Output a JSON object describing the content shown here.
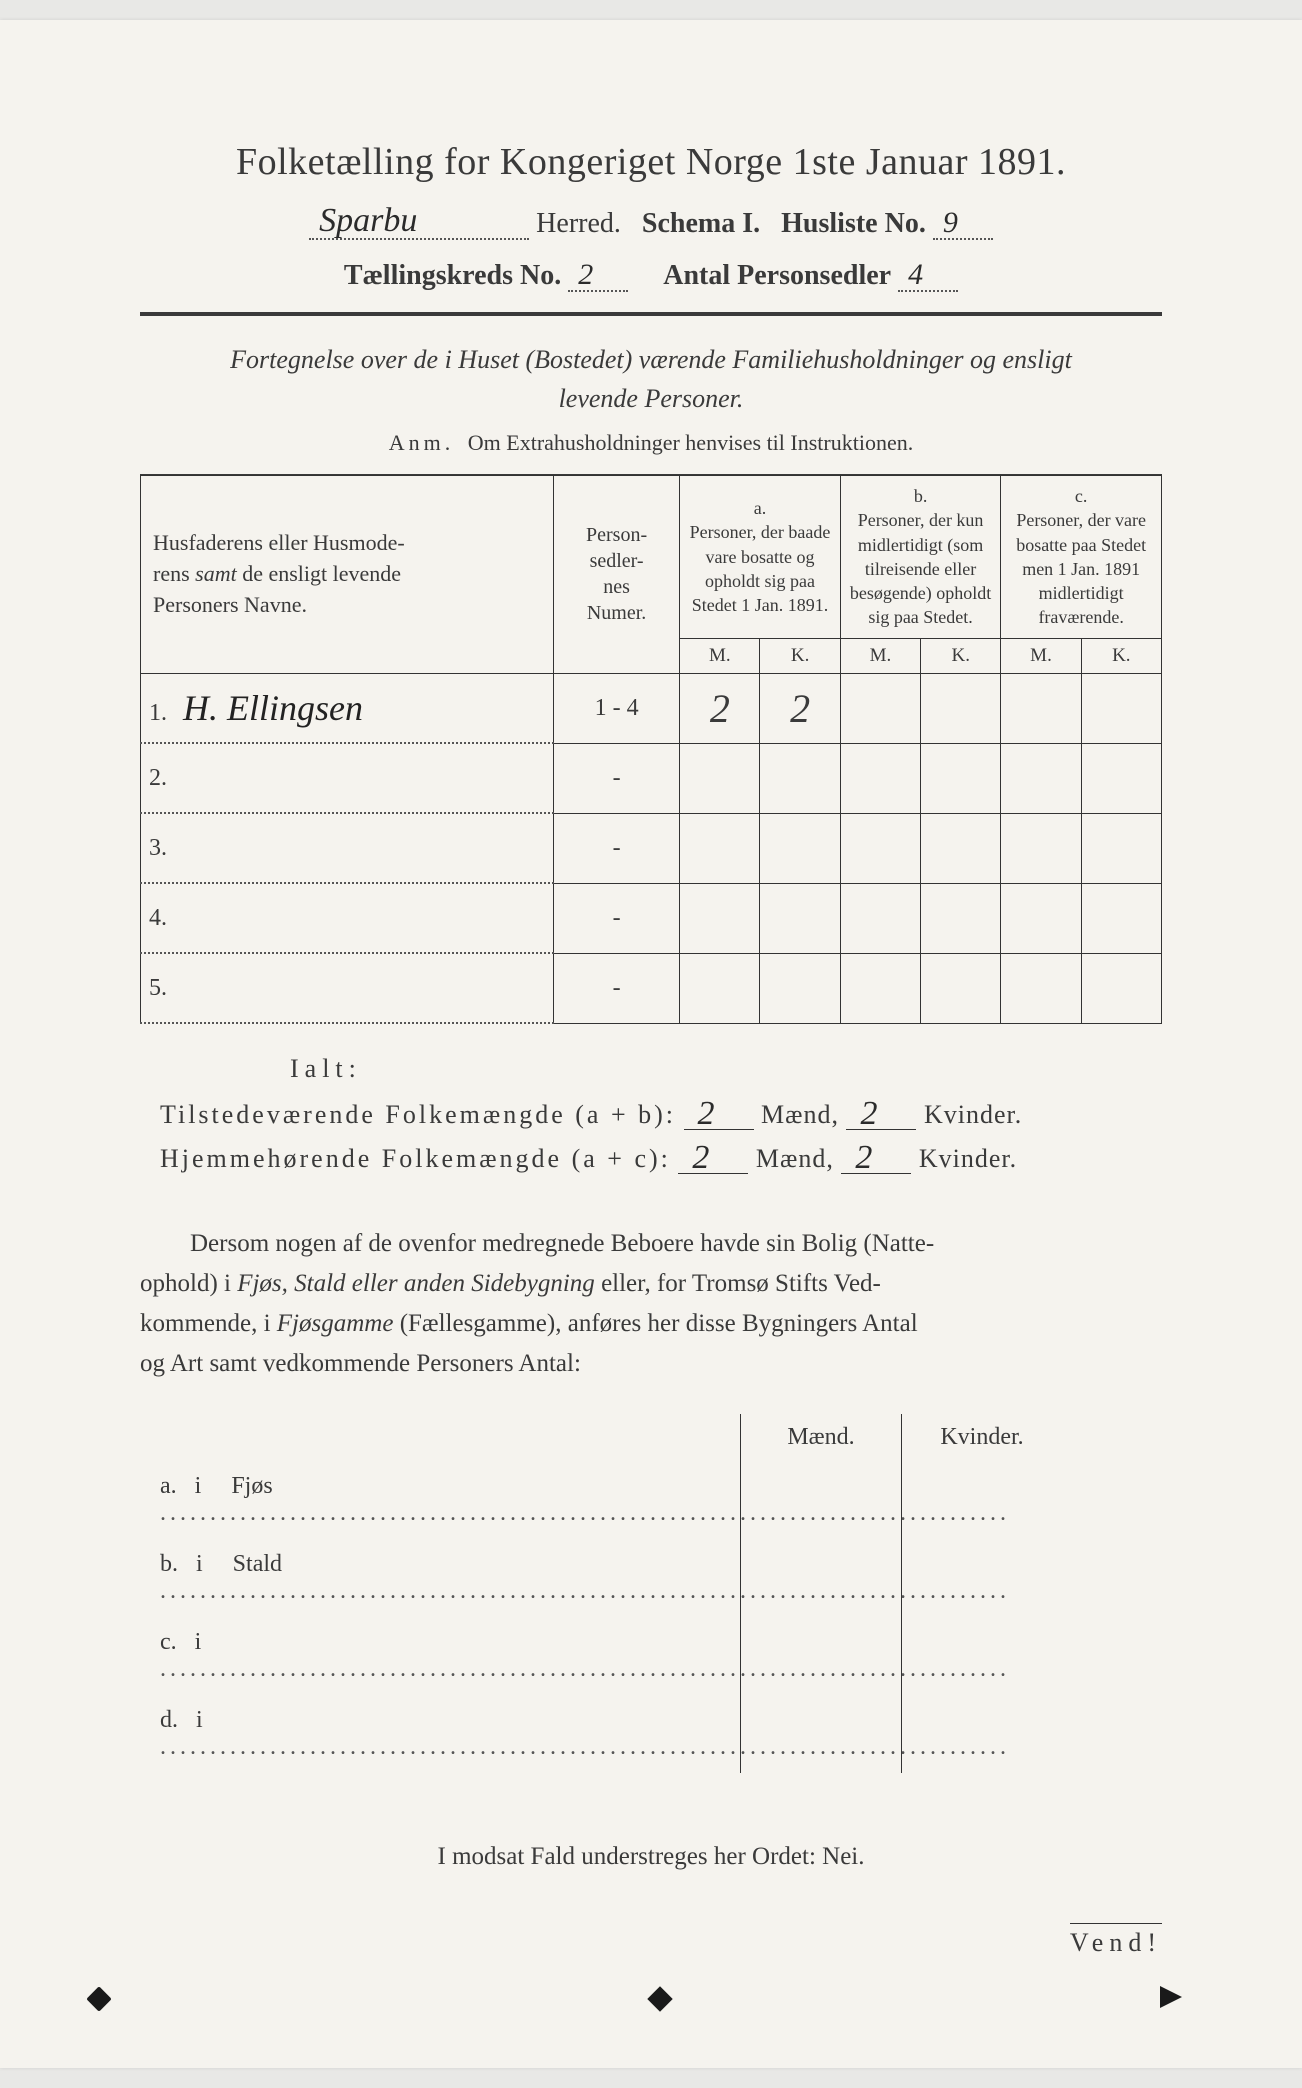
{
  "header": {
    "title": "Folketælling for Kongeriget Norge 1ste Januar 1891.",
    "herred_value": "Sparbu",
    "herred_label": "Herred.",
    "schema_label": "Schema I.",
    "husliste_label": "Husliste No.",
    "husliste_value": "9",
    "kreds_label": "Tællingskreds No.",
    "kreds_value": "2",
    "antal_label": "Antal Personsedler",
    "antal_value": "4"
  },
  "intro": {
    "fortegnelse": "Fortegnelse over de i Huset (Bostedet) værende Familiehusholdninger og ensligt levende Personer.",
    "anm_label": "Anm.",
    "anm_text": "Om Extrahusholdninger henvises til Instruktionen."
  },
  "table": {
    "col_name": "Husfaderens eller Husmoderens samt de ensligt levende Personers Navne.",
    "col_num": "Person-\nsedler-\nnes\nNumer.",
    "col_a_key": "a.",
    "col_a": "Personer, der baade vare bosatte og opholdt sig paa Stedet 1 Jan. 1891.",
    "col_b_key": "b.",
    "col_b": "Personer, der kun midlertidigt (som tilreisende eller besøgende) opholdt sig paa Stedet.",
    "col_c_key": "c.",
    "col_c": "Personer, der vare bosatte paa Stedet men 1 Jan. 1891 midlertidigt fraværende.",
    "M": "M.",
    "K": "K.",
    "rows": [
      {
        "n": "1.",
        "name": "H. Ellingsen",
        "num": "1 - 4",
        "aM": "2",
        "aK": "2",
        "bM": "",
        "bK": "",
        "cM": "",
        "cK": ""
      },
      {
        "n": "2.",
        "name": "",
        "num": "-",
        "aM": "",
        "aK": "",
        "bM": "",
        "bK": "",
        "cM": "",
        "cK": ""
      },
      {
        "n": "3.",
        "name": "",
        "num": "-",
        "aM": "",
        "aK": "",
        "bM": "",
        "bK": "",
        "cM": "",
        "cK": ""
      },
      {
        "n": "4.",
        "name": "",
        "num": "-",
        "aM": "",
        "aK": "",
        "bM": "",
        "bK": "",
        "cM": "",
        "cK": ""
      },
      {
        "n": "5.",
        "name": "",
        "num": "-",
        "aM": "",
        "aK": "",
        "bM": "",
        "bK": "",
        "cM": "",
        "cK": ""
      }
    ]
  },
  "ialt": "Ialt:",
  "totals": {
    "line1_label": "Tilstedeværende Folkemængde (a + b):",
    "line2_label": "Hjemmehørende Folkemængde (a + c):",
    "maend": "Mænd,",
    "kvinder": "Kvinder.",
    "l1_m": "2",
    "l1_k": "2",
    "l2_m": "2",
    "l2_k": "2"
  },
  "paragraph": "Dersom nogen af de ovenfor medregnede Beboere havde sin Bolig (Natteophold) i Fjøs, Stald eller anden Sidebygning eller, for Tromsø Stifts Vedkommende, i Fjøsgamme (Fællesgamme), anføres her disse Bygningers Antal og Art samt vedkommende Personers Antal:",
  "btm": {
    "maend": "Mænd.",
    "kvinder": "Kvinder.",
    "rows": [
      {
        "k": "a.",
        "i": "i",
        "label": "Fjøs"
      },
      {
        "k": "b.",
        "i": "i",
        "label": "Stald"
      },
      {
        "k": "c.",
        "i": "i",
        "label": ""
      },
      {
        "k": "d.",
        "i": "i",
        "label": ""
      }
    ]
  },
  "modsat": "I modsat Fald understreges her Ordet: Nei.",
  "vend": "Vend!",
  "colors": {
    "paper": "#f5f3ee",
    "ink": "#3a3a3a",
    "hand": "#2b2b2b"
  }
}
